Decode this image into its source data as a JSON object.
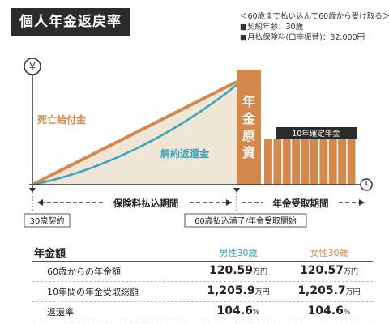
{
  "title": "個人年金返戻率",
  "conditions": {
    "note": "＜60歳まで払い込んで60歳から受け取る＞",
    "age": "■契約年齢：30歳",
    "premium": "■月払保険料(口座振替)：32,000円"
  },
  "diagram": {
    "yen_symbol": "¥",
    "label_death": "死亡給付金",
    "label_surrender": "解約返還金",
    "label_pension_fund": "年金原資",
    "label_fixed_period": "10年確定年金",
    "payment_period": "保険料払込期間",
    "receive_period": "年金受取期間",
    "start_label": "30歳契約",
    "switch_label": "60歳払込満了/年金受取開始",
    "fixed_period_bar_count": 10,
    "colors": {
      "death": "#d4894c",
      "surrender": "#3aa5b8",
      "fill": "#efe6d8",
      "dark": "#2b2b2b"
    }
  },
  "table": {
    "header": {
      "label": "年金額",
      "male": "男性30歳",
      "female": "女性30歳"
    },
    "rows": [
      {
        "label": "60歳からの年金額",
        "male": "120.59",
        "male_unit": "万円",
        "female": "120.57",
        "female_unit": "万円"
      },
      {
        "label": "10年間の年金受取総額",
        "male": "1,205.9",
        "male_unit": "万円",
        "female": "1,205.7",
        "female_unit": "万円"
      },
      {
        "label": "返還率",
        "male": "104.6",
        "male_unit": "%",
        "female": "104.6",
        "female_unit": "%"
      }
    ]
  }
}
